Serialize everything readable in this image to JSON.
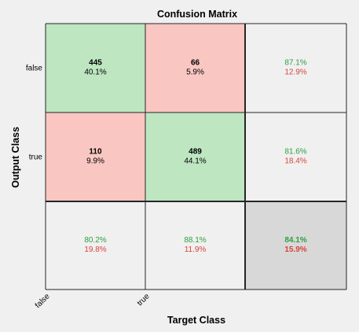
{
  "chart_data": {
    "type": "confusion-matrix",
    "title": "Confusion Matrix",
    "xlabel": "Target Class",
    "ylabel": "Output Class",
    "classes": [
      "false",
      "true"
    ],
    "counts": [
      [
        445,
        66
      ],
      [
        110,
        489
      ]
    ],
    "cell_percent": [
      [
        "40.1%",
        "5.9%"
      ],
      [
        "9.9%",
        "44.1%"
      ]
    ],
    "row_summary": [
      [
        "87.1%",
        "12.9%"
      ],
      [
        "81.6%",
        "18.4%"
      ]
    ],
    "col_summary": [
      [
        "80.2%",
        "19.8%"
      ],
      [
        "88.1%",
        "11.9%"
      ]
    ],
    "overall": [
      "84.1%",
      "15.9%"
    ],
    "colors": {
      "correct": "#bde6c1",
      "incorrect": "#f9c6c1",
      "summary": "#f0f0f0",
      "overall": "#d8d8d8",
      "good_text": "#2ea043",
      "bad_text": "#d9443b",
      "grid": "#262626"
    }
  }
}
